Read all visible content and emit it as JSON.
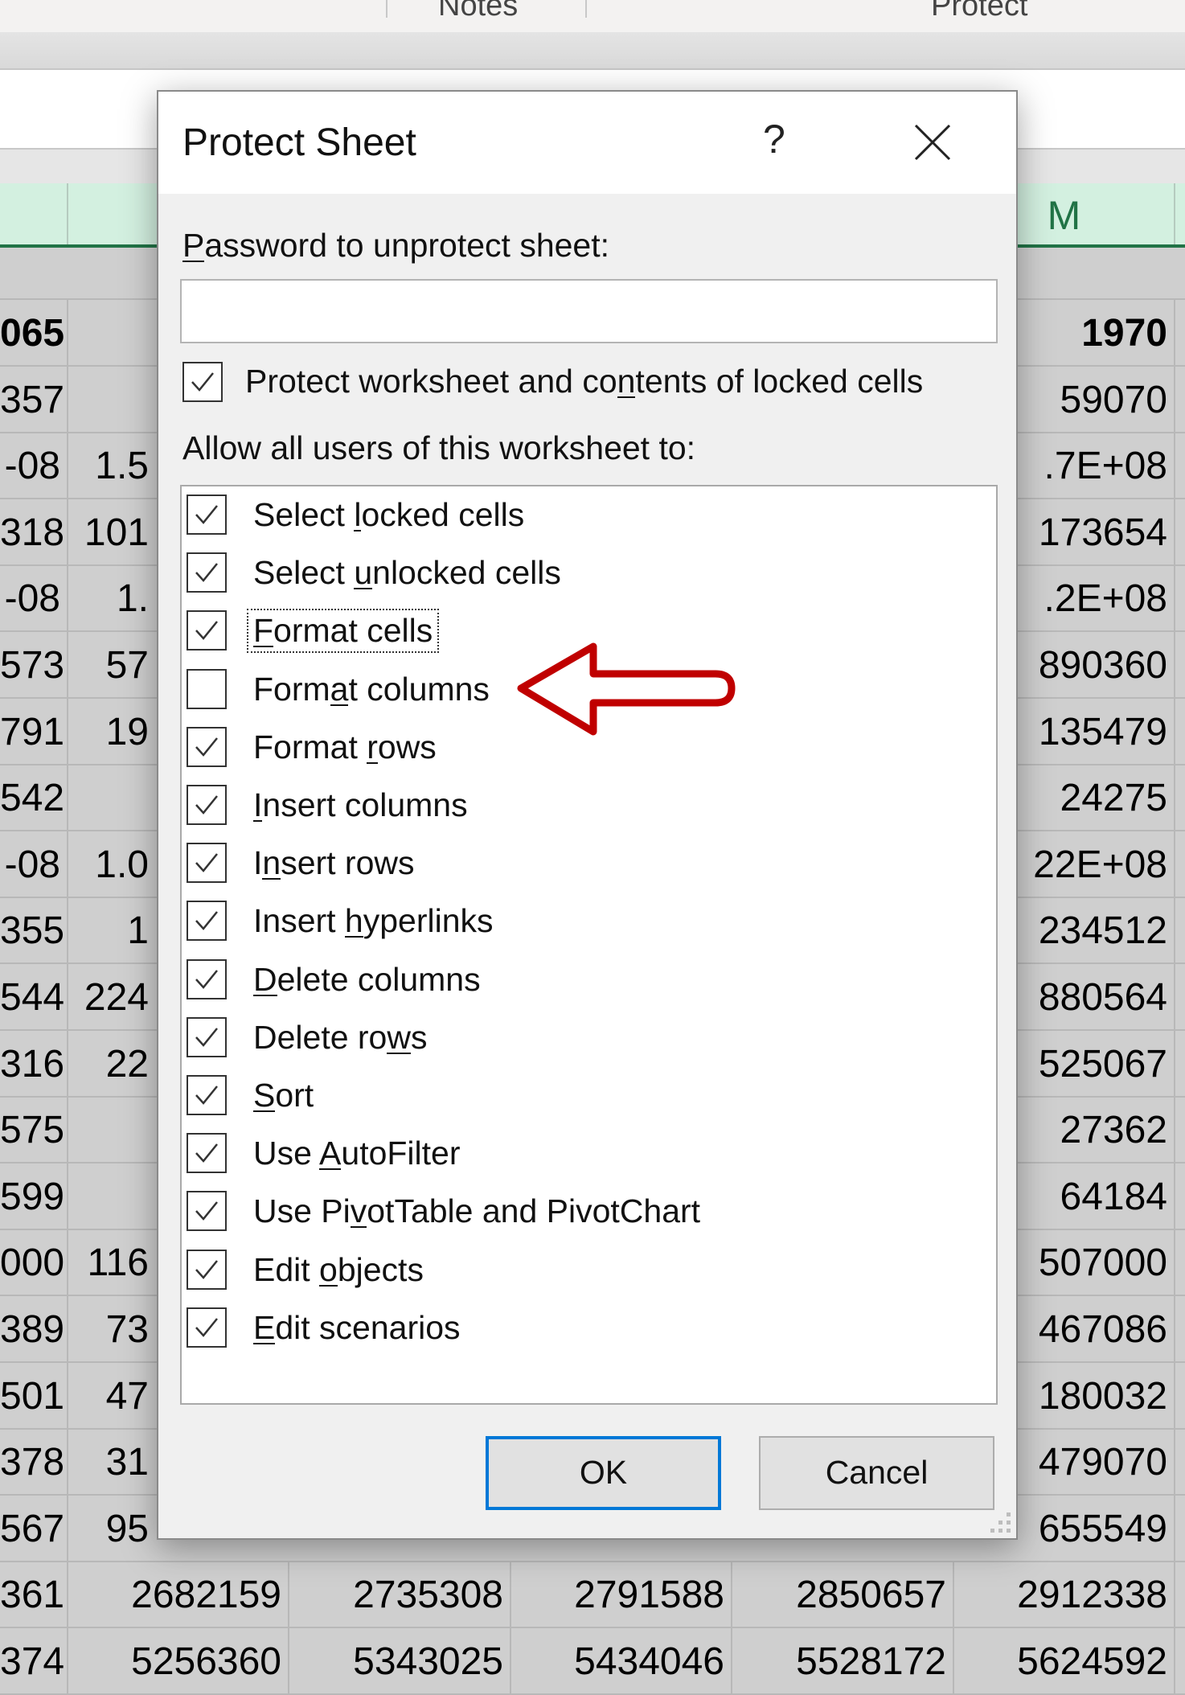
{
  "ribbon": {
    "notes": "Notes",
    "protect": "Protect"
  },
  "sheet": {
    "column_headers": [
      "",
      "",
      "",
      "",
      "",
      "M"
    ],
    "rows": [
      [
        "065",
        "",
        "",
        "",
        "",
        "1970"
      ],
      [
        "357",
        "",
        "",
        "",
        "",
        "59070"
      ],
      [
        "-08",
        "1.5",
        "",
        "",
        "",
        ".7E+08"
      ],
      [
        "318",
        "101",
        "",
        "",
        "",
        "173654"
      ],
      [
        "-08",
        "1.",
        "",
        "",
        "",
        ".2E+08"
      ],
      [
        "573",
        "57",
        "",
        "",
        "",
        "890360"
      ],
      [
        "791",
        "19",
        "",
        "",
        "",
        "135479"
      ],
      [
        "542",
        "",
        "",
        "",
        "",
        "24275"
      ],
      [
        "-08",
        "1.0",
        "",
        "",
        "",
        "22E+08"
      ],
      [
        "355",
        "1",
        "",
        "",
        "",
        "234512"
      ],
      [
        "544",
        "224",
        "",
        "",
        "",
        "880564"
      ],
      [
        "316",
        "22",
        "",
        "",
        "",
        "525067"
      ],
      [
        "575",
        "",
        "",
        "",
        "",
        "27362"
      ],
      [
        "599",
        "",
        "",
        "",
        "",
        "64184"
      ],
      [
        "000",
        "116",
        "",
        "",
        "",
        "507000"
      ],
      [
        "389",
        "73",
        "",
        "",
        "",
        "467086"
      ],
      [
        "501",
        "47",
        "",
        "",
        "",
        "180032"
      ],
      [
        "378",
        "31",
        "",
        "",
        "",
        "479070"
      ],
      [
        "567",
        "95",
        "",
        "",
        "",
        "655549"
      ],
      [
        "361",
        "2682159",
        "2735308",
        "2791588",
        "2850657",
        "2912338"
      ],
      [
        "374",
        "5256360",
        "5343025",
        "5434046",
        "5528172",
        "5624592"
      ]
    ]
  },
  "dialog": {
    "title": "Protect Sheet",
    "help": "?",
    "password_label": {
      "text": "Password to unprotect sheet:",
      "accel": 0
    },
    "password_value": "",
    "protect_contents": {
      "text": "Protect worksheet and contents of locked cells",
      "accel": 24,
      "checked": true
    },
    "allow_label": "Allow all users of this worksheet to:",
    "permissions": [
      {
        "label": "Select locked cells",
        "accel": 7,
        "checked": true
      },
      {
        "label": "Select unlocked cells",
        "accel": 7,
        "checked": true
      },
      {
        "label": "Format cells",
        "accel": 0,
        "checked": true,
        "focused": true
      },
      {
        "label": "Format columns",
        "accel": 4,
        "checked": false
      },
      {
        "label": "Format rows",
        "accel": 7,
        "checked": true
      },
      {
        "label": "Insert columns",
        "accel": 0,
        "checked": true
      },
      {
        "label": "Insert rows",
        "accel": 1,
        "checked": true
      },
      {
        "label": "Insert hyperlinks",
        "accel": 7,
        "checked": true
      },
      {
        "label": "Delete columns",
        "accel": 0,
        "checked": true
      },
      {
        "label": "Delete rows",
        "accel": 9,
        "checked": true
      },
      {
        "label": "Sort",
        "accel": 0,
        "checked": true
      },
      {
        "label": "Use AutoFilter",
        "accel": 4,
        "checked": true
      },
      {
        "label": "Use PivotTable and PivotChart",
        "accel": 6,
        "checked": true
      },
      {
        "label": "Edit objects",
        "accel": 5,
        "checked": true
      },
      {
        "label": "Edit scenarios",
        "accel": 0,
        "checked": true
      }
    ],
    "ok_label": "OK",
    "cancel_label": "Cancel"
  },
  "colors": {
    "accent": "#0078d7",
    "annotation_arrow": "#c00000",
    "header_green": "#217346"
  }
}
